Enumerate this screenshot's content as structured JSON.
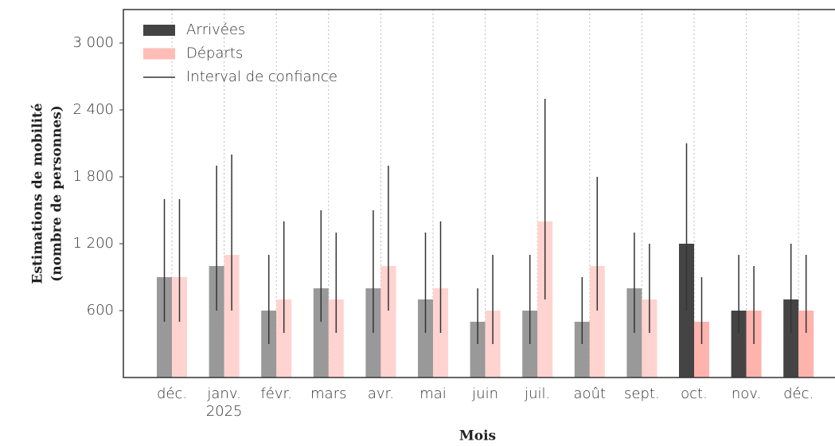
{
  "chart_data": {
    "type": "bar",
    "xlabel": "Mois",
    "ylabel": [
      "Estimations de mobilité",
      "(nombre de personnes)"
    ],
    "categories": [
      "déc.",
      "janv.\n2025",
      "févr.",
      "mars",
      "avr.",
      "mai",
      "juin",
      "juil.",
      "août",
      "sept.",
      "oct.",
      "nov.",
      "déc."
    ],
    "series": [
      {
        "name": "Arrivées",
        "color": "#444444",
        "colors": [
          "#999999",
          "#999999",
          "#999999",
          "#999999",
          "#999999",
          "#999999",
          "#999999",
          "#999999",
          "#999999",
          "#999999",
          "#444444",
          "#444444",
          "#444444"
        ],
        "values": [
          900,
          1000,
          600,
          800,
          800,
          700,
          500,
          600,
          500,
          800,
          1200,
          600,
          700
        ],
        "lower": [
          500,
          600,
          300,
          500,
          400,
          400,
          300,
          300,
          300,
          400,
          600,
          400,
          400
        ],
        "upper": [
          1600,
          1900,
          1100,
          1500,
          1500,
          1300,
          800,
          1100,
          900,
          1300,
          2100,
          1100,
          1200
        ]
      },
      {
        "name": "Départs",
        "color": "#ffbdb8",
        "colors": [
          "#ffd3cf",
          "#ffd3cf",
          "#ffd3cf",
          "#ffd3cf",
          "#ffd3cf",
          "#ffd3cf",
          "#ffd3cf",
          "#ffd3cf",
          "#ffd3cf",
          "#ffd3cf",
          "#ffb3ad",
          "#ffb3ad",
          "#ffb3ad"
        ],
        "values": [
          900,
          1100,
          700,
          700,
          1000,
          800,
          600,
          1400,
          1000,
          700,
          500,
          600,
          600
        ],
        "lower": [
          500,
          600,
          400,
          400,
          600,
          400,
          300,
          700,
          600,
          400,
          300,
          300,
          400
        ],
        "upper": [
          1600,
          2000,
          1400,
          1300,
          1900,
          1400,
          1100,
          2500,
          1800,
          1200,
          900,
          1000,
          1100
        ]
      }
    ],
    "errorbar_name": "Interval de confiance",
    "errorbar_color": "#333333",
    "ylim": [
      0,
      3300
    ],
    "yticks": [
      600,
      {
        "value": 1200,
        "label": "1 200"
      },
      {
        "value": 1800,
        "label": "1 800"
      },
      {
        "value": 2400,
        "label": "2 400"
      },
      {
        "value": 3000,
        "label": "3 000"
      }
    ],
    "grid": "x",
    "legend": "upper left"
  }
}
